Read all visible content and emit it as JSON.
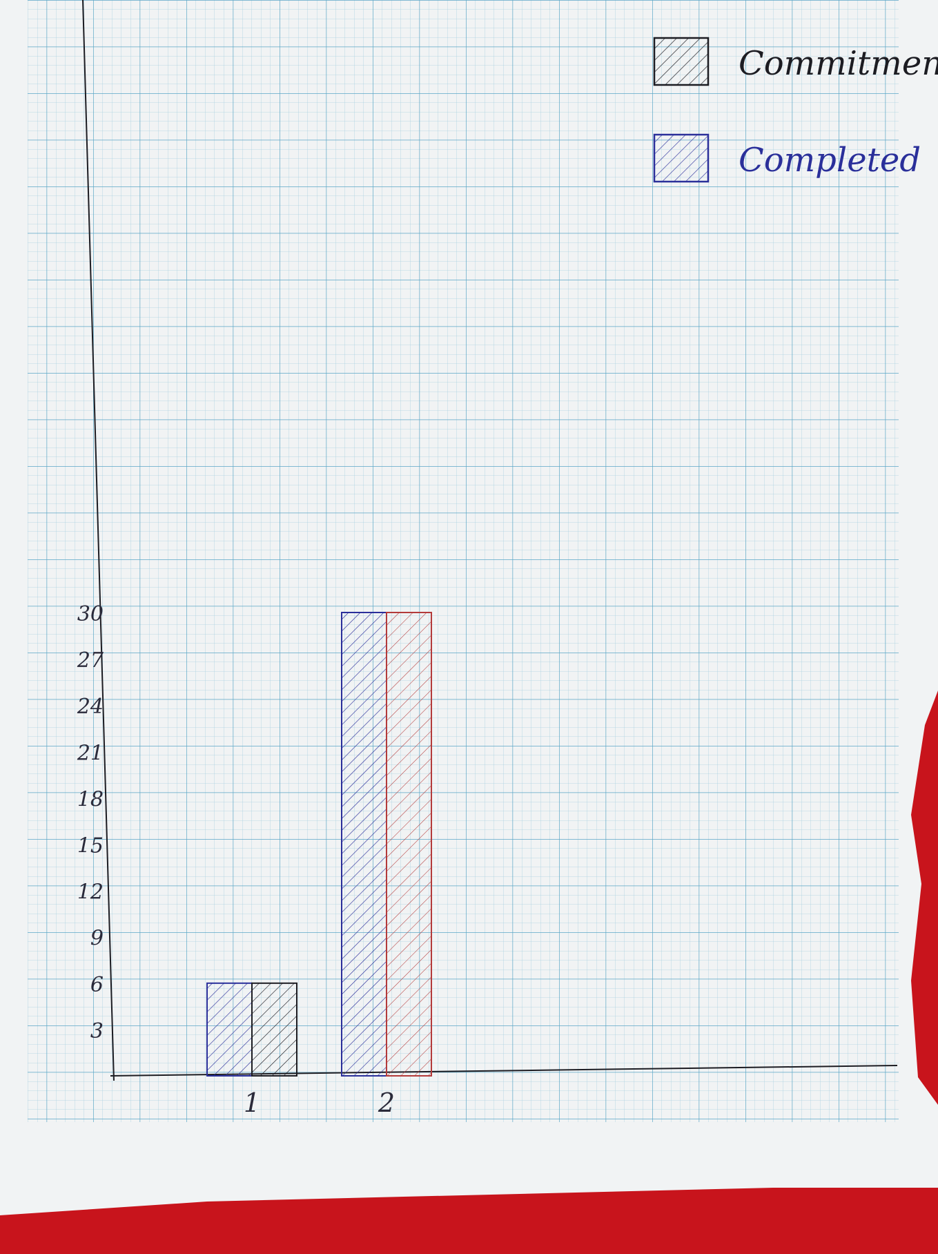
{
  "colors": {
    "background": "#c8141c",
    "paper": "#f1f3f4",
    "grid_minor": "#a9d0e0",
    "grid_major": "#5aa6c6",
    "ink_black": "#1c1c22",
    "ink_blue": "#2a2f9a",
    "ink_red": "#b33a3a"
  },
  "chart_data": {
    "type": "bar",
    "categories": [
      "1",
      "2"
    ],
    "series": [
      {
        "name": "Commitment",
        "values": [
          6,
          30
        ],
        "color": "#1c1c22",
        "pattern": "diagonal-hatch"
      },
      {
        "name": "Completed",
        "values": [
          6,
          30
        ],
        "color": "#2a2f9a",
        "pattern": "diagonal-hatch"
      }
    ],
    "yticks": [
      3,
      6,
      9,
      12,
      15,
      18,
      21,
      24,
      27,
      30
    ],
    "ytick_labels": [
      "3",
      "6",
      "9",
      "12",
      "15",
      "18",
      "21",
      "24",
      "27",
      "30"
    ],
    "ylim": [
      0,
      30
    ],
    "title": "",
    "xlabel": "",
    "ylabel": "",
    "grid": true,
    "legend": {
      "position": "top-right",
      "entries": [
        "Commitment",
        "Completed"
      ]
    }
  }
}
